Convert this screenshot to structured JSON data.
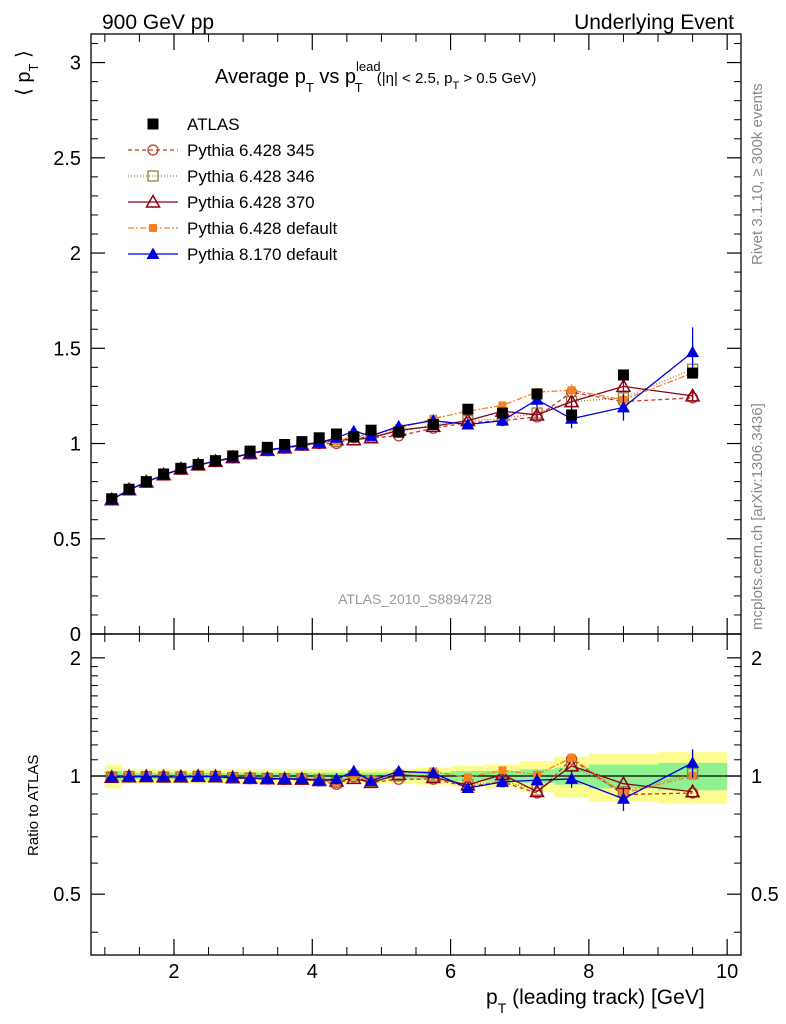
{
  "header": {
    "left": "900 GeV pp",
    "right": "Underlying Event"
  },
  "side_labels": {
    "rivet": "Rivet 3.1.10, ≥ 300k events",
    "mcplots": "mcplots.cern.ch [arXiv:1306.3436]"
  },
  "watermark": "ATLAS_2010_S8894728",
  "plot_title": {
    "prefix": "Average p",
    "sub_t1": "T",
    "mid": " vs p",
    "sup_lead": "lead",
    "sub_t2": "T",
    "cut_open": " (|η| < 2.5, p",
    "sub_t3": "T",
    "cut_close": " > 0.5 GeV)"
  },
  "axes": {
    "ylabel_main": "⟨ p",
    "ylabel_main_sub": "T",
    "ylabel_main_close": " ⟩",
    "ylabel_ratio": "Ratio to ATLAS",
    "xlabel": "p",
    "xlabel_sub": "T",
    "xlabel_rest": " (leading track) [GeV]",
    "main_ticks": [
      "0",
      "0.5",
      "1",
      "1.5",
      "2",
      "2.5",
      "3"
    ],
    "ratio_ticks": [
      "0.5",
      "1",
      "2"
    ],
    "x_ticks": [
      "2",
      "4",
      "6",
      "8",
      "10"
    ]
  },
  "legend": [
    {
      "label": "ATLAS",
      "color": "#000000",
      "marker": "square-filled",
      "dash": ""
    },
    {
      "label": "Pythia 6.428 345",
      "color": "#c0392b",
      "marker": "circle-open",
      "dash": "4,3"
    },
    {
      "label": "Pythia 6.428 346",
      "color": "#9a7a3a",
      "marker": "square-open",
      "dash": "1,2"
    },
    {
      "label": "Pythia 6.428 370",
      "color": "#8b0016",
      "marker": "triangle-open",
      "dash": ""
    },
    {
      "label": "Pythia 6.428 default",
      "color": "#f58220",
      "marker": "square-small",
      "dash": "6,2,2,2"
    },
    {
      "label": "Pythia 8.170 default",
      "color": "#0000dd",
      "marker": "triangle-filled",
      "dash": ""
    }
  ],
  "chart_data": {
    "type": "scatter",
    "xlim": [
      0.8,
      10.2
    ],
    "ylim_main": [
      0,
      3.15
    ],
    "ylim_ratio": [
      0.35,
      2.3
    ],
    "x": [
      1.1,
      1.35,
      1.6,
      1.85,
      2.1,
      2.35,
      2.6,
      2.85,
      3.1,
      3.35,
      3.6,
      3.85,
      4.1,
      4.35,
      4.6,
      4.85,
      5.25,
      5.75,
      6.25,
      6.75,
      7.25,
      7.75,
      8.5,
      9.5
    ],
    "x_edges": [
      1.0,
      1.25,
      1.5,
      1.75,
      2.0,
      2.25,
      2.5,
      2.75,
      3.0,
      3.25,
      3.5,
      3.75,
      4.0,
      4.25,
      4.5,
      4.75,
      5.0,
      5.5,
      6.0,
      6.5,
      7.0,
      7.5,
      8.0,
      9.0,
      10.0
    ],
    "band_inner": [
      0.03,
      0.02,
      0.02,
      0.02,
      0.02,
      0.02,
      0.02,
      0.02,
      0.02,
      0.02,
      0.02,
      0.02,
      0.02,
      0.02,
      0.02,
      0.02,
      0.02,
      0.02,
      0.03,
      0.03,
      0.04,
      0.05,
      0.07,
      0.08
    ],
    "band_outer": [
      0.07,
      0.04,
      0.04,
      0.04,
      0.04,
      0.04,
      0.04,
      0.04,
      0.04,
      0.04,
      0.04,
      0.04,
      0.04,
      0.04,
      0.04,
      0.04,
      0.04,
      0.05,
      0.06,
      0.07,
      0.09,
      0.12,
      0.14,
      0.15
    ],
    "series": [
      {
        "name": "ATLAS",
        "values": [
          0.71,
          0.76,
          0.8,
          0.84,
          0.87,
          0.89,
          0.91,
          0.935,
          0.96,
          0.98,
          0.995,
          1.01,
          1.03,
          1.05,
          1.035,
          1.07,
          1.06,
          1.1,
          1.18,
          1.16,
          1.26,
          1.15,
          1.36,
          1.37
        ],
        "errors": [
          0,
          0,
          0,
          0,
          0,
          0,
          0,
          0,
          0,
          0,
          0,
          0,
          0,
          0,
          0,
          0,
          0.01,
          0.01,
          0.015,
          0.02,
          0.02,
          0.04,
          0.02,
          0.02
        ],
        "ratio": null
      },
      {
        "name": "Pythia 6.428 345",
        "values": [
          0.705,
          0.757,
          0.797,
          0.835,
          0.865,
          0.887,
          0.905,
          0.925,
          0.945,
          0.962,
          0.975,
          0.99,
          1.0,
          1.0,
          1.03,
          1.03,
          1.04,
          1.08,
          1.11,
          1.12,
          1.14,
          1.27,
          1.22,
          1.24
        ],
        "errors": [
          0,
          0,
          0,
          0,
          0,
          0,
          0,
          0,
          0,
          0,
          0,
          0,
          0,
          0,
          0,
          0,
          0.01,
          0.01,
          0.01,
          0.01,
          0.02,
          0.03,
          0.03,
          0.03
        ],
        "ratio": [
          0.993,
          0.996,
          0.996,
          0.994,
          0.994,
          0.997,
          0.995,
          0.989,
          0.984,
          0.982,
          0.98,
          0.98,
          0.971,
          0.952,
          0.995,
          0.963,
          0.981,
          0.982,
          0.94,
          0.966,
          0.905,
          1.104,
          0.897,
          0.905
        ]
      },
      {
        "name": "Pythia 6.428 346",
        "values": [
          0.705,
          0.758,
          0.797,
          0.835,
          0.866,
          0.888,
          0.907,
          0.927,
          0.948,
          0.966,
          0.979,
          0.993,
          1.005,
          1.01,
          1.035,
          1.04,
          1.06,
          1.1,
          1.12,
          1.13,
          1.16,
          1.22,
          1.24,
          1.39
        ],
        "errors": [
          0,
          0,
          0,
          0,
          0,
          0,
          0,
          0,
          0,
          0,
          0,
          0,
          0,
          0,
          0,
          0,
          0.01,
          0.01,
          0.01,
          0.01,
          0.02,
          0.03,
          0.03,
          0.03
        ],
        "ratio": [
          0.993,
          0.997,
          0.996,
          0.994,
          0.995,
          0.998,
          0.997,
          0.991,
          0.988,
          0.986,
          0.984,
          0.983,
          0.976,
          0.962,
          1.0,
          0.972,
          1.0,
          1.0,
          0.949,
          0.974,
          0.921,
          1.061,
          0.912,
          1.015
        ]
      },
      {
        "name": "Pythia 6.428 370",
        "values": [
          0.705,
          0.757,
          0.798,
          0.836,
          0.866,
          0.888,
          0.906,
          0.926,
          0.947,
          0.964,
          0.977,
          0.992,
          1.003,
          1.02,
          1.02,
          1.03,
          1.07,
          1.09,
          1.12,
          1.17,
          1.15,
          1.22,
          1.3,
          1.25
        ],
        "errors": [
          0,
          0,
          0,
          0,
          0,
          0,
          0,
          0,
          0,
          0,
          0,
          0,
          0,
          0,
          0,
          0,
          0.01,
          0.01,
          0.01,
          0.01,
          0.02,
          0.03,
          0.03,
          0.03
        ],
        "ratio": [
          0.993,
          0.996,
          0.997,
          0.995,
          0.995,
          0.998,
          0.996,
          0.99,
          0.986,
          0.984,
          0.982,
          0.982,
          0.974,
          0.971,
          0.986,
          0.963,
          1.009,
          0.991,
          0.949,
          1.009,
          0.913,
          1.061,
          0.956,
          0.912
        ]
      },
      {
        "name": "Pythia 6.428 default",
        "values": [
          0.705,
          0.758,
          0.798,
          0.836,
          0.867,
          0.889,
          0.908,
          0.928,
          0.949,
          0.967,
          0.98,
          0.995,
          1.008,
          1.01,
          1.04,
          1.045,
          1.08,
          1.13,
          1.17,
          1.2,
          1.27,
          1.28,
          1.23,
          1.37
        ],
        "errors": [
          0,
          0,
          0,
          0,
          0,
          0,
          0,
          0,
          0,
          0,
          0,
          0,
          0,
          0,
          0,
          0,
          0.01,
          0.01,
          0.01,
          0.015,
          0.02,
          0.03,
          0.03,
          0.03
        ],
        "ratio": [
          0.993,
          0.997,
          0.997,
          0.995,
          0.997,
          0.999,
          0.998,
          0.993,
          0.989,
          0.987,
          0.985,
          0.985,
          0.979,
          0.962,
          1.005,
          0.977,
          1.019,
          1.027,
          0.992,
          1.034,
          1.008,
          1.113,
          0.904,
          1.0
        ]
      },
      {
        "name": "Pythia 8.170 default",
        "values": [
          0.705,
          0.757,
          0.797,
          0.835,
          0.866,
          0.888,
          0.907,
          0.927,
          0.948,
          0.966,
          0.979,
          0.993,
          1.005,
          1.03,
          1.065,
          1.04,
          1.09,
          1.12,
          1.1,
          1.12,
          1.23,
          1.13,
          1.19,
          1.48
        ],
        "errors": [
          0,
          0,
          0,
          0,
          0,
          0,
          0,
          0,
          0,
          0,
          0,
          0,
          0,
          0,
          0,
          0,
          0.01,
          0.01,
          0.015,
          0.025,
          0.04,
          0.05,
          0.07,
          0.13
        ],
        "ratio": [
          0.993,
          0.996,
          0.996,
          0.994,
          0.995,
          0.998,
          0.997,
          0.991,
          0.988,
          0.986,
          0.984,
          0.983,
          0.976,
          0.981,
          1.029,
          0.972,
          1.028,
          1.018,
          0.932,
          0.966,
          0.976,
          0.983,
          0.875,
          1.08
        ],
        "ratio_errors": [
          0,
          0,
          0,
          0,
          0,
          0,
          0,
          0,
          0,
          0,
          0,
          0,
          0,
          0,
          0,
          0,
          0.01,
          0.01,
          0.015,
          0.025,
          0.04,
          0.05,
          0.06,
          0.09
        ]
      }
    ]
  }
}
